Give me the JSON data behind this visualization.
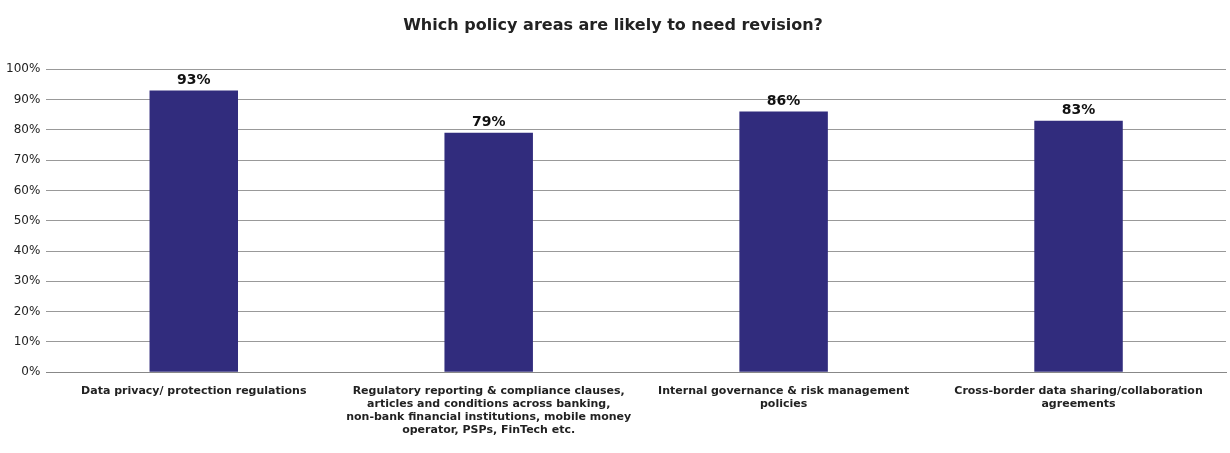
{
  "chart_data": {
    "type": "bar",
    "title": "Which policy areas are likely to need revision?",
    "categories": [
      "Data privacy/ protection regulations",
      "Regulatory reporting & compliance clauses, articles and conditions across banking, non-bank financial institutions, mobile money operator, PSPs, FinTech etc.",
      "Internal governance & risk management policies",
      "Cross-border data sharing/collaboration agreements"
    ],
    "values": [
      93,
      79,
      86,
      83
    ],
    "value_labels": [
      "93%",
      "79%",
      "86%",
      "83%"
    ],
    "color": "#312c7d",
    "ylim": [
      0,
      100
    ],
    "yticks": [
      {
        "value": 0,
        "label": "0%"
      },
      {
        "value": 10,
        "label": "10%"
      },
      {
        "value": 20,
        "label": "20%"
      },
      {
        "value": 30,
        "label": "30%"
      },
      {
        "value": 40,
        "label": "40%"
      },
      {
        "value": 50,
        "label": "50%"
      },
      {
        "value": 60,
        "label": "60%"
      },
      {
        "value": 70,
        "label": "70%"
      },
      {
        "value": 80,
        "label": "80%"
      },
      {
        "value": 90,
        "label": "90%"
      },
      {
        "value": 100,
        "label": "100%"
      }
    ],
    "grid": "y",
    "legend": false
  }
}
